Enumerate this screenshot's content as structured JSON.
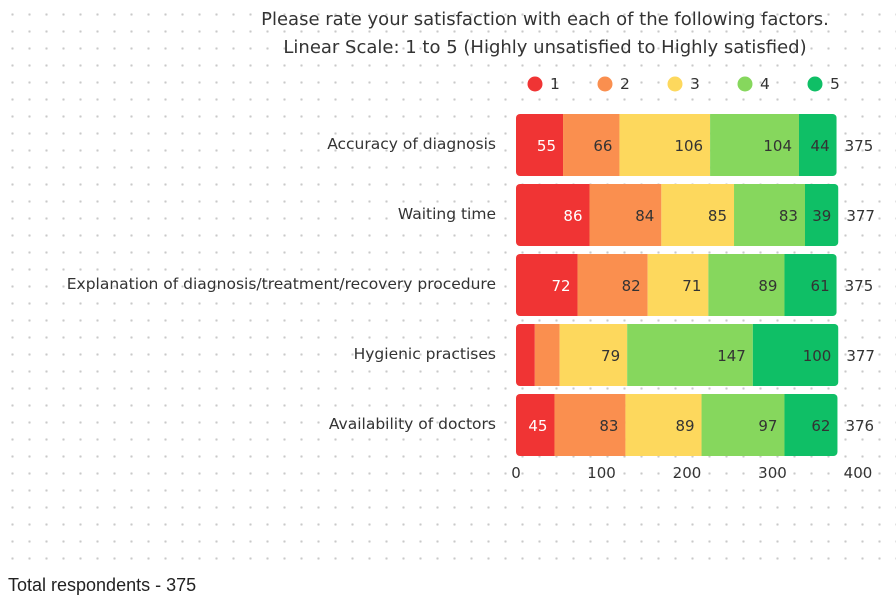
{
  "footer": "Total respondents - 375",
  "chart_data": {
    "type": "bar",
    "orientation": "horizontal",
    "stacked": true,
    "title": "Please rate your satisfaction with each of the following factors.",
    "subtitle": "Linear Scale: 1 to 5 (Highly unsatisfied to Highly satisfied)",
    "categories": [
      "Accuracy of diagnosis",
      "Waiting time",
      "Explanation of diagnosis/treatment/recovery procedure",
      "Hygienic practises",
      "Availability of doctors"
    ],
    "series": [
      {
        "name": "1",
        "color": "#f03434",
        "label_color": "#ffffff",
        "values": [
          55,
          86,
          72,
          22,
          45
        ],
        "labels": [
          "55",
          "86",
          "72",
          "",
          "45"
        ]
      },
      {
        "name": "2",
        "color": "#fa8f4f",
        "label_color": "#333333",
        "values": [
          66,
          84,
          82,
          29,
          83
        ],
        "labels": [
          "66",
          "84",
          "82",
          "",
          "83"
        ]
      },
      {
        "name": "3",
        "color": "#fdd85d",
        "label_color": "#333333",
        "values": [
          106,
          85,
          71,
          79,
          89
        ],
        "labels": [
          "106",
          "85",
          "71",
          "79",
          "89"
        ]
      },
      {
        "name": "4",
        "color": "#86d75d",
        "label_color": "#333333",
        "values": [
          104,
          83,
          89,
          147,
          97
        ],
        "labels": [
          "104",
          "83",
          "89",
          "147",
          "97"
        ]
      },
      {
        "name": "5",
        "color": "#0fbf66",
        "label_color": "#333333",
        "values": [
          44,
          39,
          61,
          100,
          62
        ],
        "labels": [
          "44",
          "39",
          "61",
          "100",
          "62"
        ]
      }
    ],
    "totals": [
      "375",
      "377",
      "375",
      "377",
      "376"
    ],
    "xlim": [
      0,
      400
    ],
    "xticks": [
      "0",
      "100",
      "200",
      "300",
      "400"
    ],
    "legend": "top",
    "grid": false
  }
}
